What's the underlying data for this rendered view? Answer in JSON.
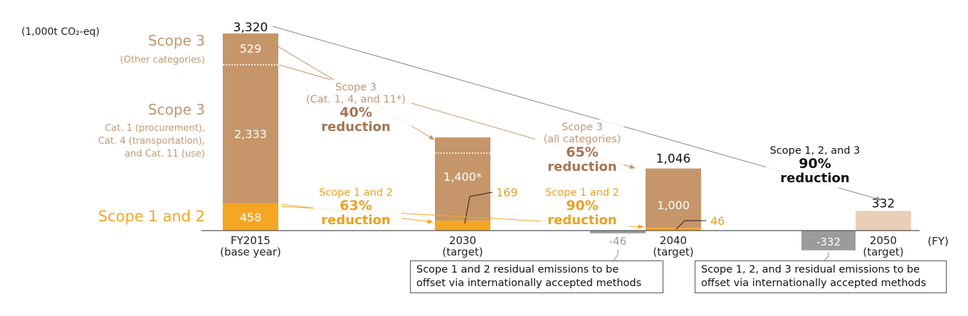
{
  "chart_data": {
    "type": "bar",
    "unit_label": "(1,000t CO₂-eq)",
    "x_unit": "(FY)",
    "categories": [
      {
        "l1": "FY2015",
        "l2": "(base year)"
      },
      {
        "l1": "2030",
        "l2": "(target)"
      },
      {
        "l1": "2040",
        "l2": "(target)"
      },
      {
        "l1": "2050",
        "l2": "(target)"
      }
    ],
    "series": [
      {
        "name": "Scope 1 and 2",
        "values": [
          458,
          169,
          46,
          null
        ]
      },
      {
        "name": "Scope 3 Cat. 1, Cat. 4, and Cat. 11",
        "values": [
          2333,
          1400,
          null,
          null
        ]
      },
      {
        "name": "Scope 3 (Other categories)",
        "values": [
          529,
          null,
          null,
          null
        ]
      },
      {
        "name": "Scope 3 (all categories)",
        "values": [
          null,
          null,
          1000,
          null
        ]
      },
      {
        "name": "Scope 1, 2, and 3",
        "values": [
          null,
          null,
          null,
          332
        ]
      }
    ],
    "offsets": [
      {
        "category": "2040",
        "value": -46,
        "label": "-46"
      },
      {
        "category": "2050",
        "value": -332,
        "label": "-332"
      }
    ],
    "totals": [
      {
        "category": "FY2015",
        "label": "3,320"
      },
      {
        "category": "2040",
        "label": "1,046"
      },
      {
        "category": "2050",
        "label": "332"
      }
    ],
    "segment_labels": [
      {
        "category": "FY2015",
        "series": "Scope 3 (Other categories)",
        "label": "529"
      },
      {
        "category": "FY2015",
        "series": "Scope 3 Cat. 1, Cat. 4, and Cat. 11",
        "label": "2,333"
      },
      {
        "category": "FY2015",
        "series": "Scope 1 and 2",
        "label": "458"
      },
      {
        "category": "2030",
        "series": "Scope 3 Cat. 1, Cat. 4, and Cat. 11",
        "label": "1,400*"
      },
      {
        "category": "2030",
        "series": "Scope 1 and 2",
        "label": "169"
      },
      {
        "category": "2040",
        "series": "Scope 3 (all categories)",
        "label": "1,000"
      },
      {
        "category": "2040",
        "series": "Scope 1 and 2",
        "label": "46"
      }
    ],
    "legend": {
      "scope3_other": {
        "title": "Scope 3",
        "sub": "(Other categories)"
      },
      "scope3_cats": {
        "title": "Scope 3",
        "lines": [
          "Cat. 1 (procurement),",
          "Cat. 4 (transportation),",
          "and Cat. 11 (use)"
        ]
      },
      "scope12": {
        "title": "Scope 1 and 2"
      }
    },
    "annotations": [
      {
        "lines": [
          "Scope 3",
          "(Cat. 1, 4, and 11*)"
        ],
        "pct": "40%",
        "word": "reduction"
      },
      {
        "lines": [
          "Scope 1 and 2"
        ],
        "pct": "63%",
        "word": "reduction"
      },
      {
        "lines": [
          "Scope 3",
          "(all categories)"
        ],
        "pct": "65%",
        "word": "reduction"
      },
      {
        "lines": [
          "Scope 1 and 2"
        ],
        "pct": "90%",
        "word": "reduction"
      },
      {
        "lines": [
          "Scope 1, 2, and 3"
        ],
        "pct": "90%",
        "word": "reduction"
      }
    ],
    "callouts": [
      {
        "lines": [
          "Scope 1 and 2 residual emissions to be",
          "offset via internationally accepted methods"
        ]
      },
      {
        "lines": [
          "Scope 1, 2, and 3 residual emissions to be",
          "offset via internationally accepted methods"
        ]
      }
    ],
    "colors": {
      "scope12": "#f5a623",
      "scope3": "#c6966a",
      "scope3_text": "#c29870",
      "scope3_bold": "#a37552",
      "scope12_text": "#e8a224",
      "total_2050": "#e8cfb6",
      "offset_bar": "#9b9b9b",
      "offset_text": "#999999",
      "gray_line": "#888888",
      "axis": "#555555"
    }
  }
}
